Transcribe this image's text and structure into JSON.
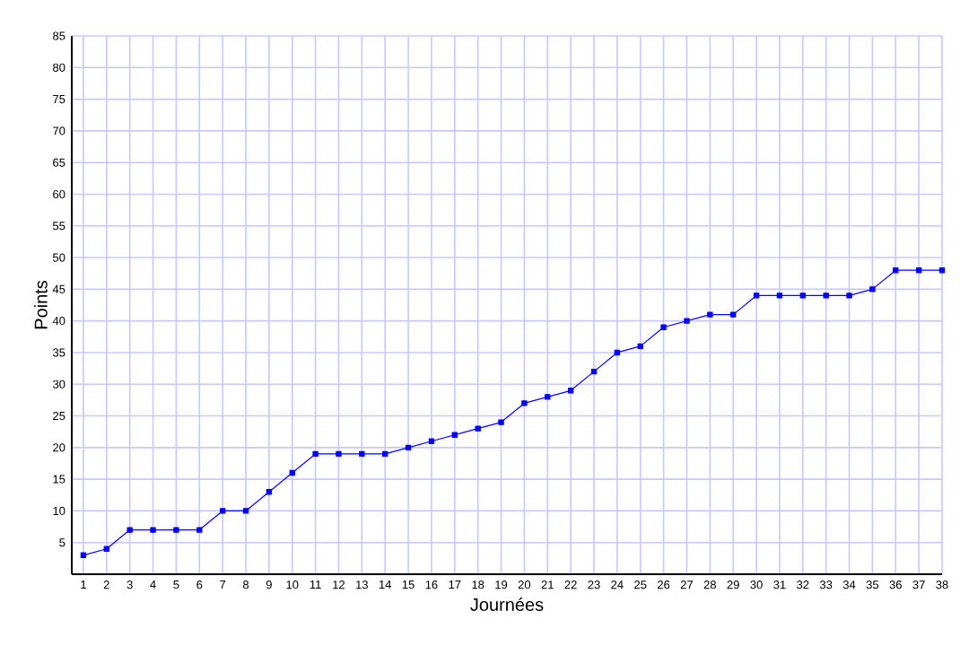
{
  "chart_data": {
    "type": "line",
    "xlabel": "Journées",
    "ylabel": "Points",
    "x": [
      1,
      2,
      3,
      4,
      5,
      6,
      7,
      8,
      9,
      10,
      11,
      12,
      13,
      14,
      15,
      16,
      17,
      18,
      19,
      20,
      21,
      22,
      23,
      24,
      25,
      26,
      27,
      28,
      29,
      30,
      31,
      32,
      33,
      34,
      35,
      36,
      37,
      38
    ],
    "series": [
      {
        "color": "#0000ff",
        "values": [
          3,
          4,
          7,
          7,
          7,
          7,
          10,
          10,
          13,
          16,
          19,
          19,
          19,
          19,
          20,
          21,
          22,
          23,
          24,
          27,
          28,
          29,
          32,
          35,
          36,
          39,
          40,
          41,
          41,
          44,
          44,
          44,
          44,
          44,
          45,
          48,
          48,
          48
        ]
      }
    ],
    "xlim": [
      0.5,
      38
    ],
    "xticks": [
      1,
      2,
      3,
      4,
      5,
      6,
      7,
      8,
      9,
      10,
      11,
      12,
      13,
      14,
      15,
      16,
      17,
      18,
      19,
      20,
      21,
      22,
      23,
      24,
      25,
      26,
      27,
      28,
      29,
      30,
      31,
      32,
      33,
      34,
      35,
      36,
      37,
      38
    ],
    "ylim": [
      0,
      85
    ],
    "yticks": [
      5,
      10,
      15,
      20,
      25,
      30,
      35,
      40,
      45,
      50,
      55,
      60,
      65,
      70,
      75,
      80,
      85
    ],
    "grid": true,
    "marker": "square",
    "line_style": "solid"
  }
}
